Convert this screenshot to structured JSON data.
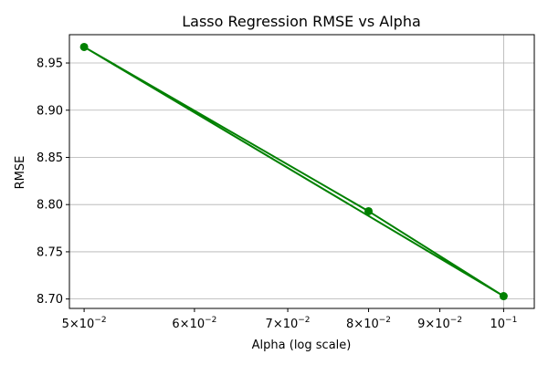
{
  "chart_data": {
    "type": "line",
    "title": "Lasso Regression RMSE vs Alpha",
    "xlabel": "Alpha (log scale)",
    "ylabel": "RMSE",
    "x_scale": "log",
    "xlim": [
      0.0488,
      0.1052
    ],
    "ylim": [
      8.69,
      8.98
    ],
    "grid": true,
    "x_ticks": [
      {
        "value": 0.05,
        "mantissa": "5",
        "base": "10",
        "exponent": "−2"
      },
      {
        "value": 0.06,
        "mantissa": "6",
        "base": "10",
        "exponent": "−2"
      },
      {
        "value": 0.07,
        "mantissa": "7",
        "base": "10",
        "exponent": "−2"
      },
      {
        "value": 0.08,
        "mantissa": "8",
        "base": "10",
        "exponent": "−2"
      },
      {
        "value": 0.09,
        "mantissa": "9",
        "base": "10",
        "exponent": "−2"
      },
      {
        "value": 0.1,
        "mantissa": "",
        "base": "10",
        "exponent": "−1"
      }
    ],
    "y_ticks": [
      {
        "value": 8.7,
        "label": "8.70"
      },
      {
        "value": 8.75,
        "label": "8.75"
      },
      {
        "value": 8.8,
        "label": "8.80"
      },
      {
        "value": 8.85,
        "label": "8.85"
      },
      {
        "value": 8.9,
        "label": "8.90"
      },
      {
        "value": 8.95,
        "label": "8.95"
      }
    ],
    "series": [
      {
        "color": "#008000",
        "x": [
          0.05,
          0.08,
          0.1,
          0.05
        ],
        "y": [
          8.967,
          8.793,
          8.703,
          8.967
        ]
      }
    ]
  }
}
